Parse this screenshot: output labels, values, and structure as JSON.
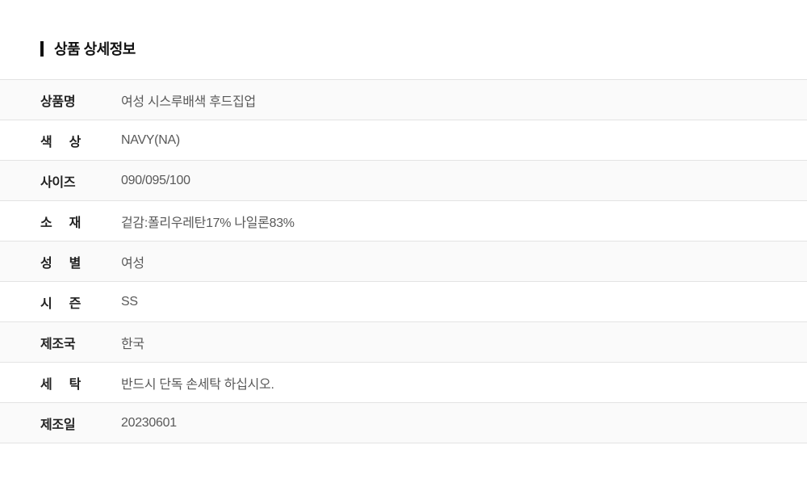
{
  "header": {
    "title": "상품 상세정보",
    "accent_color": "#111111"
  },
  "table": {
    "stripe_color": "#fafafa",
    "divider_color": "#e3e3e3",
    "label_color": "#222222",
    "value_color": "#595959",
    "rows": [
      {
        "label": "상품명",
        "value": "여성 시스루배색 후드집업"
      },
      {
        "label": "색 상",
        "value": "NAVY(NA)"
      },
      {
        "label": "사이즈",
        "value": "090/095/100"
      },
      {
        "label": "소 재",
        "value": "겉감:폴리우레탄17% 나일론83%"
      },
      {
        "label": "성 별",
        "value": "여성"
      },
      {
        "label": "시 즌",
        "value": "SS"
      },
      {
        "label": "제조국",
        "value": "한국"
      },
      {
        "label": "세 탁",
        "value": "반드시 단독 손세탁 하십시오."
      },
      {
        "label": "제조일",
        "value": "20230601"
      }
    ]
  }
}
